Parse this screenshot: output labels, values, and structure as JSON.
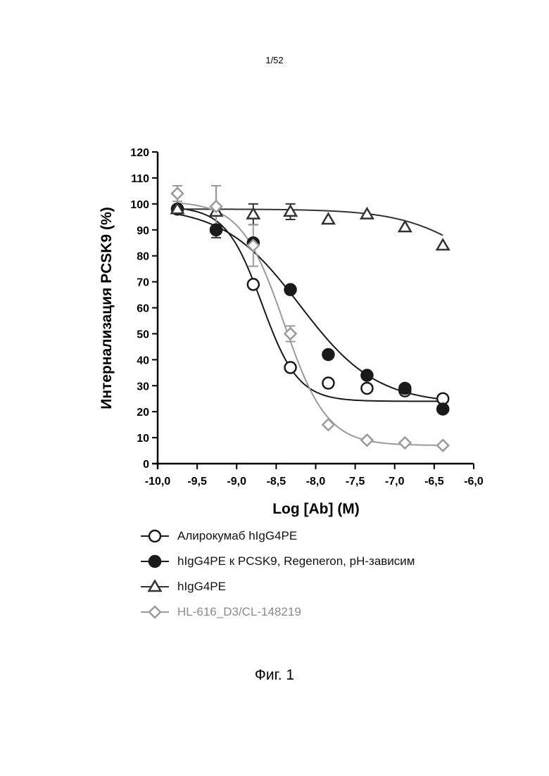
{
  "page": {
    "number": "1/52",
    "caption": "Фиг. 1"
  },
  "chart_data": {
    "type": "scatter",
    "title": "",
    "xlabel": "Log [Ab] (M)",
    "ylabel": "Интернализация PCSK9 (%)",
    "xlim": [
      -10.0,
      -6.0
    ],
    "ylim": [
      0,
      120
    ],
    "x_ticks": [
      -10.0,
      -9.5,
      -9.0,
      -8.5,
      -8.0,
      -7.5,
      -7.0,
      -6.5,
      -6.0
    ],
    "x_tick_labels": [
      "-10,0",
      "-9,5",
      "-9,0",
      "-8,5",
      "-8,0",
      "-7,5",
      "-7,0",
      "-6,5",
      "-6,0"
    ],
    "y_ticks": [
      0,
      10,
      20,
      30,
      40,
      50,
      60,
      70,
      80,
      90,
      100,
      110,
      120
    ],
    "y_tick_labels": [
      "0",
      "10",
      "20",
      "30",
      "40",
      "50",
      "60",
      "70",
      "80",
      "90",
      "100",
      "110",
      "120"
    ],
    "legend_position": "bottom",
    "series": [
      {
        "name": "Алирокумаб hIgG4PE",
        "marker": "circle-open",
        "color": "#1a1a1a",
        "x": [
          -9.75,
          -9.26,
          -8.79,
          -8.32,
          -7.84,
          -7.35,
          -6.87,
          -6.39
        ],
        "y": [
          98,
          90,
          69,
          37,
          31,
          29,
          28,
          25
        ],
        "fit": {
          "top": 99,
          "bottom": 24,
          "log_ic50": -8.68,
          "hill": 1.9
        }
      },
      {
        "name": "hIgG4PE к PCSK9, Regeneron, pH-зависим",
        "marker": "circle-filled",
        "color": "#1a1a1a",
        "x": [
          -9.75,
          -9.26,
          -8.79,
          -8.32,
          -7.84,
          -7.35,
          -6.87,
          -6.39
        ],
        "y": [
          98,
          90,
          85,
          67,
          42,
          34,
          29,
          21
        ],
        "fit": {
          "top": 99,
          "bottom": 23,
          "log_ic50": -8.2,
          "hill": 0.9
        }
      },
      {
        "name": "hIgG4PE",
        "marker": "triangle-open",
        "color": "#333333",
        "x": [
          -9.75,
          -9.26,
          -8.79,
          -8.32,
          -7.84,
          -7.35,
          -6.87,
          -6.39
        ],
        "y": [
          98,
          97,
          96,
          97,
          94,
          96,
          91,
          84
        ],
        "error": [
          0,
          10,
          4,
          3,
          0,
          0,
          0,
          0
        ],
        "fit": {
          "top": 98,
          "bottom": 60,
          "log_ic50": -5.9,
          "hill": 0.9
        }
      },
      {
        "name": "HL-616_D3/CL-148219",
        "marker": "diamond-open",
        "color": "#9a9a9a",
        "x": [
          -9.75,
          -9.26,
          -8.79,
          -8.32,
          -7.84,
          -7.35,
          -6.87,
          -6.39
        ],
        "y": [
          104,
          99,
          84,
          50,
          15,
          9,
          8,
          7
        ],
        "error": [
          3,
          8,
          8,
          3,
          0,
          0,
          0,
          0
        ],
        "fit": {
          "top": 101,
          "bottom": 7,
          "log_ic50": -8.4,
          "hill": 1.6
        }
      }
    ]
  }
}
